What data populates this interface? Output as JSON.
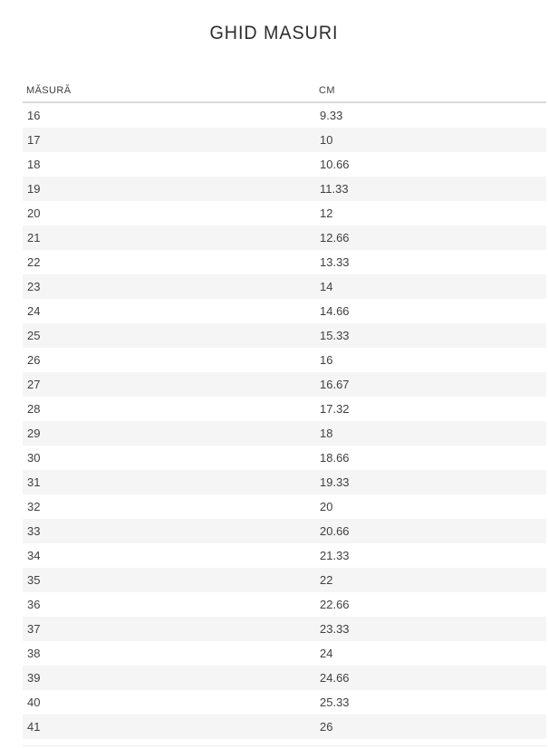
{
  "title": "GHID MASURI",
  "table": {
    "headers": [
      "MĂSURĂ",
      "CM"
    ],
    "rows": [
      {
        "size": "16",
        "cm": "9.33"
      },
      {
        "size": "17",
        "cm": "10"
      },
      {
        "size": "18",
        "cm": "10.66"
      },
      {
        "size": "19",
        "cm": "11.33"
      },
      {
        "size": "20",
        "cm": "12"
      },
      {
        "size": "21",
        "cm": "12.66"
      },
      {
        "size": "22",
        "cm": "13.33"
      },
      {
        "size": "23",
        "cm": "14"
      },
      {
        "size": "24",
        "cm": "14.66"
      },
      {
        "size": "25",
        "cm": "15.33"
      },
      {
        "size": "26",
        "cm": "16"
      },
      {
        "size": "27",
        "cm": "16.67"
      },
      {
        "size": "28",
        "cm": "17.32"
      },
      {
        "size": "29",
        "cm": "18"
      },
      {
        "size": "30",
        "cm": "18.66"
      },
      {
        "size": "31",
        "cm": "19.33"
      },
      {
        "size": "32",
        "cm": "20"
      },
      {
        "size": "33",
        "cm": "20.66"
      },
      {
        "size": "34",
        "cm": "21.33"
      },
      {
        "size": "35",
        "cm": "22"
      },
      {
        "size": "36",
        "cm": "22.66"
      },
      {
        "size": "37",
        "cm": "23.33"
      },
      {
        "size": "38",
        "cm": "24"
      },
      {
        "size": "39",
        "cm": "24.66"
      },
      {
        "size": "40",
        "cm": "25.33"
      },
      {
        "size": "41",
        "cm": "26"
      }
    ]
  },
  "colors": {
    "stripe": "#f5f5f5",
    "header_rule": "#d9d9d9",
    "text": "#404040",
    "title_text": "#2d2d2d"
  }
}
